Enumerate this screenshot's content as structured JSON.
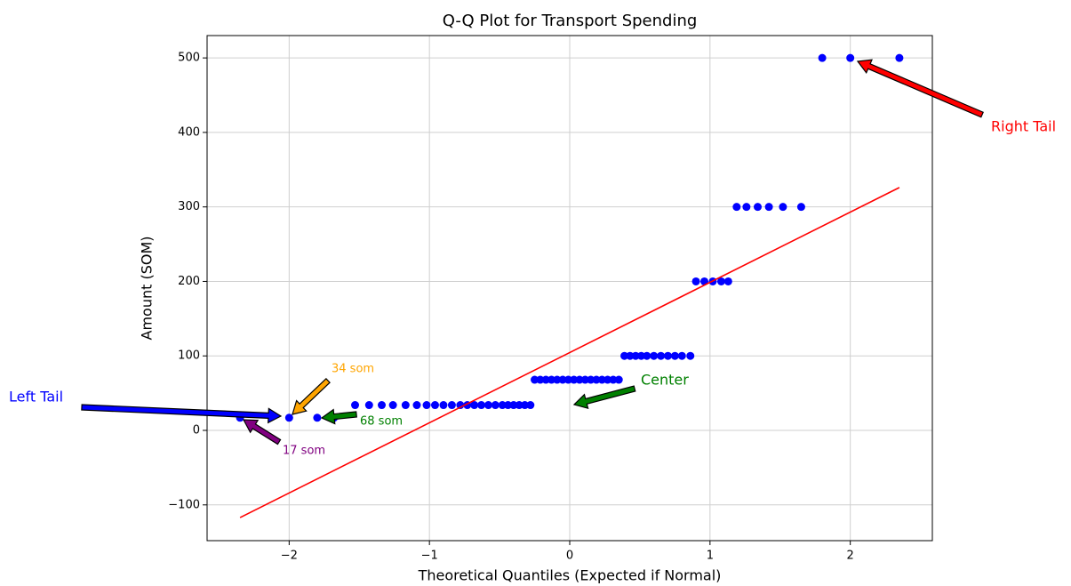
{
  "chart_data": {
    "type": "scatter",
    "title": "Q-Q Plot for Transport Spending",
    "x_label": "Theoretical Quantiles (Expected if Normal)",
    "y_label": "Amount (SOM)",
    "xlim": [
      -2.585,
      2.585
    ],
    "ylim": [
      -148,
      530
    ],
    "xticks": [
      {
        "value": -2,
        "label": "−2"
      },
      {
        "value": -1,
        "label": "−1"
      },
      0,
      1,
      2
    ],
    "yticks": [
      {
        "value": -100,
        "label": "−100"
      },
      0,
      100,
      200,
      300,
      400,
      500
    ],
    "grid": true,
    "points": {
      "color": "#0000ff",
      "x": [
        -2.35,
        -2.0,
        -1.8,
        -1.68,
        -1.53,
        -1.43,
        -1.34,
        -1.26,
        -1.17,
        -1.09,
        -1.02,
        -0.96,
        -0.9,
        -0.84,
        -0.78,
        -0.73,
        -0.68,
        -0.63,
        -0.58,
        -0.53,
        -0.48,
        -0.44,
        -0.4,
        -0.36,
        -0.32,
        -0.28,
        -0.25,
        -0.21,
        -0.17,
        -0.13,
        -0.09,
        -0.05,
        -0.01,
        0.03,
        0.07,
        0.11,
        0.15,
        0.19,
        0.23,
        0.27,
        0.31,
        0.35,
        0.39,
        0.43,
        0.47,
        0.51,
        0.55,
        0.6,
        0.65,
        0.7,
        0.75,
        0.8,
        0.86,
        0.9,
        0.96,
        1.02,
        1.08,
        1.13,
        1.19,
        1.26,
        1.34,
        1.42,
        1.52,
        1.65,
        1.8,
        2.0,
        2.35
      ],
      "values": [
        17,
        17,
        17,
        17,
        34,
        34,
        34,
        34,
        34,
        34,
        34,
        34,
        34,
        34,
        34,
        34,
        34,
        34,
        34,
        34,
        34,
        34,
        34,
        34,
        34,
        34,
        68,
        68,
        68,
        68,
        68,
        68,
        68,
        68,
        68,
        68,
        68,
        68,
        68,
        68,
        68,
        68,
        100,
        100,
        100,
        100,
        100,
        100,
        100,
        100,
        100,
        100,
        100,
        200,
        200,
        200,
        200,
        200,
        300,
        300,
        300,
        300,
        300,
        300,
        500,
        500,
        500
      ]
    },
    "fit_line": {
      "color": "#ff0000",
      "x": [
        -2.35,
        2.35
      ],
      "values": [
        -117,
        326
      ]
    },
    "annotations": [
      {
        "text": "Left Tail",
        "color": "#0000ff"
      },
      {
        "text": "Right Tail",
        "color": "#ff0000"
      },
      {
        "text": "Center",
        "color": "#008000"
      },
      {
        "text": "34 som",
        "color": "#ffa500"
      },
      {
        "text": "68 som",
        "color": "#008000"
      },
      {
        "text": "17 som",
        "color": "#800080"
      }
    ]
  }
}
